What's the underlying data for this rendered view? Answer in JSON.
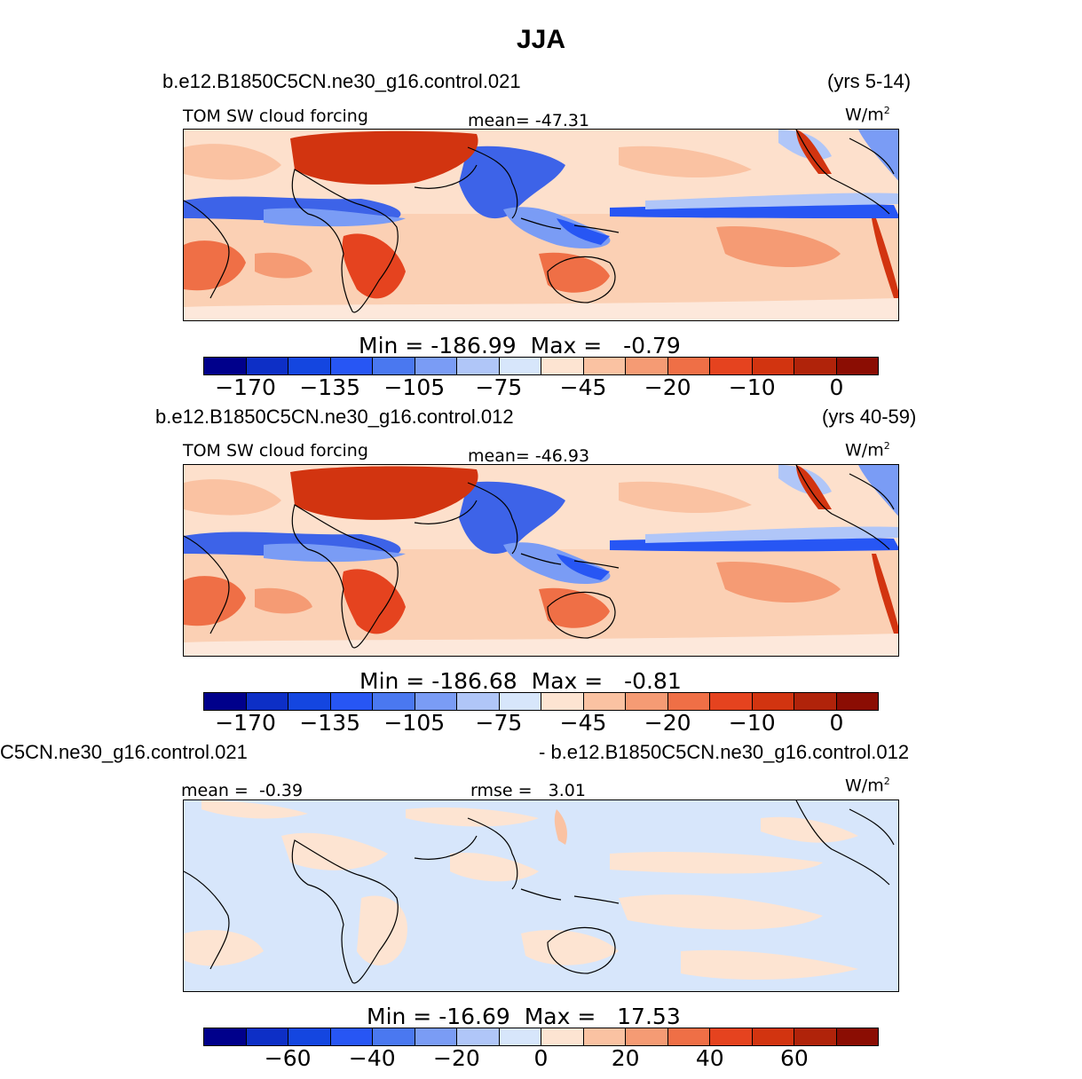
{
  "title": "JJA",
  "units_label": "W/m",
  "units_sup": "2",
  "colors": {
    "abs_scale": [
      "#00008b",
      "#0d2fc6",
      "#1446e0",
      "#2756f4",
      "#4a78f0",
      "#7a9cf5",
      "#b0c6f8",
      "#d7e6fb",
      "#fde4d2",
      "#fac2a2",
      "#f59b74",
      "#ef6f46",
      "#e5431f",
      "#d23410",
      "#b0230a",
      "#8b0d03"
    ],
    "diff_scale": [
      "#00008b",
      "#0d2fc6",
      "#1446e0",
      "#2756f4",
      "#4a78f0",
      "#7a9cf5",
      "#b0c6f8",
      "#d7e6fb",
      "#fde4d2",
      "#fac2a2",
      "#f59b74",
      "#ef6f46",
      "#e5431f",
      "#d23410",
      "#b0230a",
      "#8b0d03"
    ]
  },
  "chart_data": [
    {
      "type": "heatmap",
      "case": "b.e12.B1850C5CN.ne30_g16.control.021",
      "years": "(yrs 5-14)",
      "variable": "TOM SW cloud forcing",
      "stat_label": "mean=",
      "stat_value": "-47.31",
      "min_label": "Min  =",
      "min": "-186.99",
      "max_label": "Max =",
      "max": "-0.79",
      "colorbar_ticks": [
        "-170",
        "-135",
        "-105",
        "-75",
        "-45",
        "-20",
        "-10",
        "0"
      ]
    },
    {
      "type": "heatmap",
      "case": "b.e12.B1850C5CN.ne30_g16.control.012",
      "years": "(yrs 40-59)",
      "variable": "TOM SW cloud forcing",
      "stat_label": "mean=",
      "stat_value": "-46.93",
      "min_label": "Min  =",
      "min": "-186.68",
      "max_label": "Max =",
      "max": "-0.81",
      "colorbar_ticks": [
        "-170",
        "-135",
        "-105",
        "-75",
        "-45",
        "-20",
        "-10",
        "0"
      ]
    },
    {
      "type": "heatmap",
      "case_left": "C5CN.ne30_g16.control.021",
      "case_right": "- b.e12.B1850C5CN.ne30_g16.control.012",
      "mean_label": "mean =",
      "mean_value": "-0.39",
      "rmse_label": "rmse =",
      "rmse_value": "3.01",
      "min_label": "Min  =",
      "min": "-16.69",
      "max_label": "Max =",
      "max": "17.53",
      "colorbar_ticks": [
        "-60",
        "-40",
        "-20",
        "0",
        "20",
        "40",
        "60"
      ]
    }
  ]
}
